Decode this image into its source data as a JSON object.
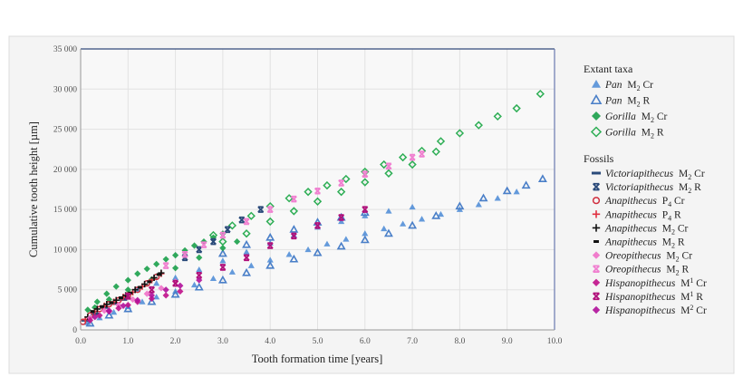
{
  "chart_data": {
    "type": "scatter",
    "xlabel": "Tooth formation time [years]",
    "ylabel": "Cumulative tooth height [µm]",
    "xlim": [
      0,
      10
    ],
    "ylim": [
      0,
      35000
    ],
    "xticks": [
      "0.0",
      "1.0",
      "2.0",
      "3.0",
      "4.0",
      "5.0",
      "6.0",
      "7.0",
      "8.0",
      "9.0",
      "10.0"
    ],
    "yticks": [
      "0",
      "5 000",
      "10 000",
      "15 000",
      "20 000",
      "25 000",
      "30 000",
      "35 000"
    ],
    "grid": true,
    "legend_position": "right",
    "legend_groups": [
      {
        "title": "Extant taxa",
        "series_indices": [
          0,
          1,
          2,
          3
        ]
      },
      {
        "title": "Fossils",
        "series_indices": [
          4,
          5,
          6,
          7,
          8,
          9,
          10,
          11,
          12,
          13,
          14
        ]
      }
    ],
    "series": [
      {
        "genus": "Pan",
        "tooth": "M",
        "sub": "2",
        "sup": "",
        "suffix": " Cr",
        "marker": "triangle-filled",
        "color": "#4a8ad6",
        "points": [
          [
            0.15,
            900
          ],
          [
            0.4,
            1500
          ],
          [
            0.7,
            2200
          ],
          [
            1.0,
            2900
          ],
          [
            1.3,
            3500
          ],
          [
            1.6,
            4100
          ],
          [
            2.0,
            4800
          ],
          [
            2.4,
            5600
          ],
          [
            2.8,
            6400
          ],
          [
            3.2,
            7200
          ],
          [
            3.6,
            8000
          ],
          [
            4.0,
            8700
          ],
          [
            4.4,
            9400
          ],
          [
            4.8,
            10000
          ],
          [
            5.2,
            10700
          ],
          [
            5.6,
            11300
          ],
          [
            6.0,
            12000
          ],
          [
            6.4,
            12600
          ],
          [
            6.8,
            13200
          ],
          [
            7.2,
            13800
          ],
          [
            7.6,
            14400
          ],
          [
            8.0,
            15000
          ],
          [
            8.4,
            15600
          ],
          [
            8.8,
            16400
          ],
          [
            9.2,
            17200
          ],
          [
            1.2,
            5000
          ],
          [
            1.6,
            5800
          ],
          [
            2.0,
            6500
          ],
          [
            2.5,
            7500
          ],
          [
            3.0,
            8600
          ],
          [
            3.5,
            9700
          ],
          [
            4.0,
            10800
          ],
          [
            4.5,
            11800
          ],
          [
            5.0,
            12800
          ],
          [
            5.5,
            13500
          ],
          [
            6.0,
            14200
          ],
          [
            6.5,
            14800
          ],
          [
            7.0,
            15300
          ]
        ]
      },
      {
        "genus": "Pan",
        "tooth": "M",
        "sub": "2",
        "sup": "",
        "suffix": " R",
        "marker": "triangle-open",
        "color": "#4a7fc8",
        "points": [
          [
            0.2,
            800
          ],
          [
            0.6,
            1800
          ],
          [
            1.0,
            2600
          ],
          [
            1.5,
            3500
          ],
          [
            2.0,
            4400
          ],
          [
            2.5,
            5300
          ],
          [
            3.0,
            6200
          ],
          [
            3.5,
            7100
          ],
          [
            4.0,
            8000
          ],
          [
            4.5,
            8800
          ],
          [
            5.0,
            9600
          ],
          [
            5.5,
            10400
          ],
          [
            6.0,
            11200
          ],
          [
            6.5,
            12000
          ],
          [
            7.0,
            13000
          ],
          [
            7.5,
            14200
          ],
          [
            8.0,
            15400
          ],
          [
            8.5,
            16400
          ],
          [
            9.0,
            17300
          ],
          [
            9.4,
            18000
          ],
          [
            9.75,
            18800
          ],
          [
            3.0,
            9500
          ],
          [
            3.5,
            10600
          ],
          [
            4.0,
            11500
          ],
          [
            4.5,
            12500
          ],
          [
            5.0,
            13400
          ],
          [
            5.5,
            14000
          ],
          [
            6.0,
            14600
          ]
        ]
      },
      {
        "genus": "Gorilla",
        "tooth": "M",
        "sub": "2",
        "sup": "",
        "suffix": " Cr",
        "marker": "diamond-filled",
        "color": "#1aa04a",
        "points": [
          [
            0.15,
            2500
          ],
          [
            0.35,
            3500
          ],
          [
            0.55,
            4500
          ],
          [
            0.75,
            5400
          ],
          [
            1.0,
            6200
          ],
          [
            1.2,
            7000
          ],
          [
            1.4,
            7600
          ],
          [
            1.6,
            8200
          ],
          [
            1.8,
            8800
          ],
          [
            2.0,
            9300
          ],
          [
            2.2,
            9900
          ],
          [
            2.4,
            10500
          ],
          [
            2.6,
            11000
          ],
          [
            2.8,
            11500
          ],
          [
            3.0,
            12000
          ],
          [
            0.3,
            2800
          ],
          [
            0.6,
            3800
          ],
          [
            1.0,
            5000
          ],
          [
            1.5,
            6300
          ],
          [
            2.0,
            7700
          ],
          [
            2.5,
            9000
          ],
          [
            3.0,
            10200
          ],
          [
            3.3,
            11000
          ]
        ]
      },
      {
        "genus": "Gorilla",
        "tooth": "M",
        "sub": "2",
        "sup": "",
        "suffix": " R",
        "marker": "diamond-open",
        "color": "#2eae55",
        "points": [
          [
            2.8,
            11800
          ],
          [
            3.2,
            13000
          ],
          [
            3.6,
            14200
          ],
          [
            4.0,
            15400
          ],
          [
            4.4,
            16400
          ],
          [
            4.8,
            17200
          ],
          [
            5.2,
            18000
          ],
          [
            5.6,
            18800
          ],
          [
            6.0,
            19700
          ],
          [
            6.4,
            20600
          ],
          [
            6.8,
            21500
          ],
          [
            7.2,
            22300
          ],
          [
            7.6,
            23500
          ],
          [
            8.0,
            24500
          ],
          [
            8.4,
            25500
          ],
          [
            8.8,
            26600
          ],
          [
            9.2,
            27600
          ],
          [
            9.7,
            29400
          ],
          [
            3.0,
            11000
          ],
          [
            3.5,
            12000
          ],
          [
            4.0,
            13500
          ],
          [
            4.5,
            14800
          ],
          [
            5.0,
            16000
          ],
          [
            5.5,
            17200
          ],
          [
            6.0,
            18400
          ],
          [
            6.5,
            19500
          ],
          [
            7.0,
            20600
          ],
          [
            7.5,
            22200
          ]
        ]
      },
      {
        "genus": "Victoriapithecus",
        "tooth": "M",
        "sub": "2",
        "sup": "",
        "suffix": " Cr",
        "marker": "dash",
        "color": "#2a4a7a",
        "points": [
          [
            0.1,
            1200
          ],
          [
            0.3,
            2000
          ],
          [
            0.5,
            2800
          ],
          [
            0.7,
            3300
          ],
          [
            0.9,
            3800
          ]
        ]
      },
      {
        "genus": "Victoriapithecus",
        "tooth": "M",
        "sub": "2",
        "sup": "",
        "suffix": " R",
        "marker": "x",
        "color": "#2a4a7a",
        "points": [
          [
            2.2,
            9000
          ],
          [
            2.5,
            10000
          ],
          [
            2.8,
            11000
          ],
          [
            3.1,
            12500
          ],
          [
            3.4,
            13700
          ],
          [
            3.8,
            15000
          ]
        ]
      },
      {
        "genus": "Anapithecus",
        "tooth": "P",
        "sub": "4",
        "sup": "",
        "suffix": " Cr",
        "marker": "circle-open",
        "color": "#d03040",
        "points": [
          [
            0.05,
            1000
          ],
          [
            0.2,
            1800
          ],
          [
            0.4,
            2600
          ],
          [
            0.6,
            3200
          ],
          [
            0.8,
            3700
          ],
          [
            1.0,
            4300
          ],
          [
            1.2,
            5000
          ],
          [
            1.4,
            5800
          ],
          [
            1.6,
            6600
          ]
        ]
      },
      {
        "genus": "Anapithecus",
        "tooth": "P",
        "sub": "4",
        "sup": "",
        "suffix": " R",
        "marker": "plus",
        "color": "#e03040",
        "points": [
          [
            0.1,
            1300
          ],
          [
            0.3,
            2300
          ],
          [
            0.5,
            3000
          ],
          [
            0.7,
            3500
          ],
          [
            0.9,
            4100
          ],
          [
            1.1,
            4700
          ],
          [
            1.3,
            5400
          ],
          [
            1.5,
            6200
          ],
          [
            1.7,
            7000
          ]
        ]
      },
      {
        "genus": "Anapithecus",
        "tooth": "M",
        "sub": "2",
        "sup": "",
        "suffix": " Cr",
        "marker": "plus",
        "color": "#111111",
        "points": [
          [
            0.15,
            1600
          ],
          [
            0.35,
            2600
          ],
          [
            0.55,
            3200
          ],
          [
            0.75,
            3700
          ],
          [
            0.95,
            4300
          ],
          [
            1.15,
            5000
          ],
          [
            1.35,
            5700
          ],
          [
            1.55,
            6500
          ],
          [
            1.7,
            7100
          ]
        ]
      },
      {
        "genus": "Anapithecus",
        "tooth": "M",
        "sub": "2",
        "sup": "",
        "suffix": " R",
        "marker": "dash-short",
        "color": "#111111",
        "points": [
          [
            0.25,
            2300
          ],
          [
            0.45,
            2900
          ],
          [
            0.65,
            3400
          ],
          [
            0.85,
            4000
          ],
          [
            1.05,
            4600
          ],
          [
            1.25,
            5300
          ],
          [
            1.45,
            6000
          ],
          [
            1.65,
            6900
          ]
        ]
      },
      {
        "genus": "Oreopithecus",
        "tooth": "M",
        "sub": "2",
        "sup": "",
        "suffix": " Cr",
        "marker": "diamond-filled",
        "color": "#f070c8",
        "points": [
          [
            0.2,
            1500
          ],
          [
            0.5,
            2400
          ],
          [
            0.8,
            3100
          ],
          [
            1.1,
            3800
          ],
          [
            1.4,
            4500
          ],
          [
            1.7,
            5200
          ],
          [
            2.0,
            6000
          ]
        ]
      },
      {
        "genus": "Oreopithecus",
        "tooth": "M",
        "sub": "2",
        "sup": "",
        "suffix": " R",
        "marker": "x",
        "color": "#f080d0",
        "points": [
          [
            1.8,
            8000
          ],
          [
            2.2,
            9400
          ],
          [
            2.6,
            10600
          ],
          [
            3.0,
            11800
          ],
          [
            3.5,
            13500
          ],
          [
            4.0,
            15000
          ],
          [
            4.5,
            16300
          ],
          [
            5.0,
            17300
          ],
          [
            5.5,
            18300
          ],
          [
            6.0,
            19400
          ],
          [
            6.5,
            20400
          ],
          [
            7.0,
            21500
          ],
          [
            7.2,
            21900
          ]
        ]
      },
      {
        "genus": "Hispanopithecus",
        "tooth": "M",
        "sub": "",
        "sup": "1",
        "suffix": " Cr",
        "marker": "diamond-filled",
        "color": "#c0108a",
        "points": [
          [
            0.2,
            1200
          ],
          [
            0.4,
            1800
          ],
          [
            0.6,
            2300
          ],
          [
            0.8,
            2700
          ],
          [
            1.0,
            3100
          ],
          [
            1.2,
            3500
          ],
          [
            1.5,
            3900
          ],
          [
            1.8,
            4300
          ],
          [
            2.1,
            4800
          ]
        ]
      },
      {
        "genus": "Hispanopithecus",
        "tooth": "M",
        "sub": "",
        "sup": "1",
        "suffix": " R",
        "marker": "x",
        "color": "#b0107a",
        "points": [
          [
            1.0,
            4200
          ],
          [
            1.5,
            5000
          ],
          [
            2.0,
            5800
          ],
          [
            2.5,
            6800
          ],
          [
            3.0,
            7800
          ],
          [
            3.5,
            9000
          ],
          [
            4.0,
            10500
          ],
          [
            4.5,
            11700
          ],
          [
            5.0,
            13000
          ],
          [
            5.5,
            14000
          ],
          [
            6.0,
            15000
          ]
        ]
      },
      {
        "genus": "Hispanopithecus",
        "tooth": "M",
        "sub": "",
        "sup": "2",
        "suffix": " Cr",
        "marker": "diamond-filled",
        "color": "#b0109a",
        "points": [
          [
            0.3,
            1600
          ],
          [
            0.6,
            2400
          ],
          [
            0.9,
            3000
          ],
          [
            1.2,
            3700
          ],
          [
            1.5,
            4300
          ],
          [
            1.8,
            5000
          ],
          [
            2.1,
            5500
          ],
          [
            2.5,
            6200
          ]
        ]
      }
    ]
  }
}
